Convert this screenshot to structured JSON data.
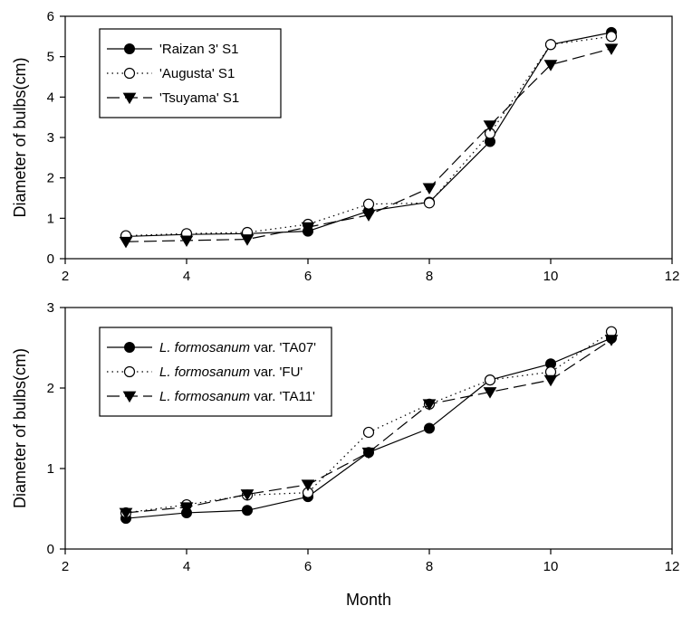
{
  "chart_data": [
    {
      "type": "line",
      "title": "",
      "xlabel": "",
      "ylabel": "Diameter of bulbs(cm)",
      "xlim": [
        2,
        12
      ],
      "ylim": [
        0,
        6
      ],
      "xticks": [
        2,
        4,
        6,
        8,
        10,
        12
      ],
      "yticks": [
        0,
        1,
        2,
        3,
        4,
        5,
        6
      ],
      "grid": false,
      "legend_position": "top-left",
      "x": [
        3,
        4,
        5,
        6,
        7,
        8,
        9,
        10,
        11
      ],
      "series": [
        {
          "name": "'Raizan 3' S1",
          "legend_parts": [
            {
              "text": "'Raizan 3' S1",
              "italic": false
            }
          ],
          "marker": "filled-circle",
          "line_style": "solid",
          "values": [
            0.55,
            0.6,
            0.62,
            0.68,
            1.18,
            1.4,
            2.9,
            5.3,
            5.6
          ]
        },
        {
          "name": "'Augusta' S1",
          "legend_parts": [
            {
              "text": "'Augusta' S1",
              "italic": false
            }
          ],
          "marker": "open-circle",
          "line_style": "dotted",
          "values": [
            0.57,
            0.62,
            0.65,
            0.85,
            1.35,
            1.38,
            3.1,
            5.3,
            5.5
          ]
        },
        {
          "name": "'Tsuyama' S1",
          "legend_parts": [
            {
              "text": "'Tsuyama' S1",
              "italic": false
            }
          ],
          "marker": "filled-triangle-down",
          "line_style": "long-dash",
          "values": [
            0.42,
            0.45,
            0.48,
            0.78,
            1.08,
            1.75,
            3.3,
            4.8,
            5.2
          ]
        }
      ]
    },
    {
      "type": "line",
      "title": "",
      "xlabel": "Month",
      "ylabel": "Diameter of bulbs(cm)",
      "xlim": [
        2,
        12
      ],
      "ylim": [
        0,
        3
      ],
      "xticks": [
        2,
        4,
        6,
        8,
        10,
        12
      ],
      "yticks": [
        0,
        1,
        2,
        3
      ],
      "grid": false,
      "legend_position": "top-left",
      "x": [
        3,
        4,
        5,
        6,
        7,
        8,
        9,
        10,
        11
      ],
      "series": [
        {
          "name": "L. formosanum var. 'TA07'",
          "legend_parts": [
            {
              "text": "L. formosanum",
              "italic": true
            },
            {
              "text": " var. 'TA07'",
              "italic": false
            }
          ],
          "marker": "filled-circle",
          "line_style": "solid",
          "values": [
            0.38,
            0.45,
            0.48,
            0.65,
            1.2,
            1.5,
            2.1,
            2.3,
            2.62
          ]
        },
        {
          "name": "L. formosanum var. 'FU'",
          "legend_parts": [
            {
              "text": "L. formosanum",
              "italic": true
            },
            {
              "text": " var. 'FU'",
              "italic": false
            }
          ],
          "marker": "open-circle",
          "line_style": "dotted",
          "values": [
            0.45,
            0.55,
            0.67,
            0.7,
            1.45,
            1.8,
            2.1,
            2.2,
            2.7
          ]
        },
        {
          "name": "L. formosanum var. 'TA11'",
          "legend_parts": [
            {
              "text": "L. formosanum",
              "italic": true
            },
            {
              "text": " var. 'TA11'",
              "italic": false
            }
          ],
          "marker": "filled-triangle-down",
          "line_style": "long-dash",
          "values": [
            0.45,
            0.52,
            0.68,
            0.8,
            1.2,
            1.8,
            1.95,
            2.1,
            2.6
          ]
        }
      ]
    }
  ]
}
